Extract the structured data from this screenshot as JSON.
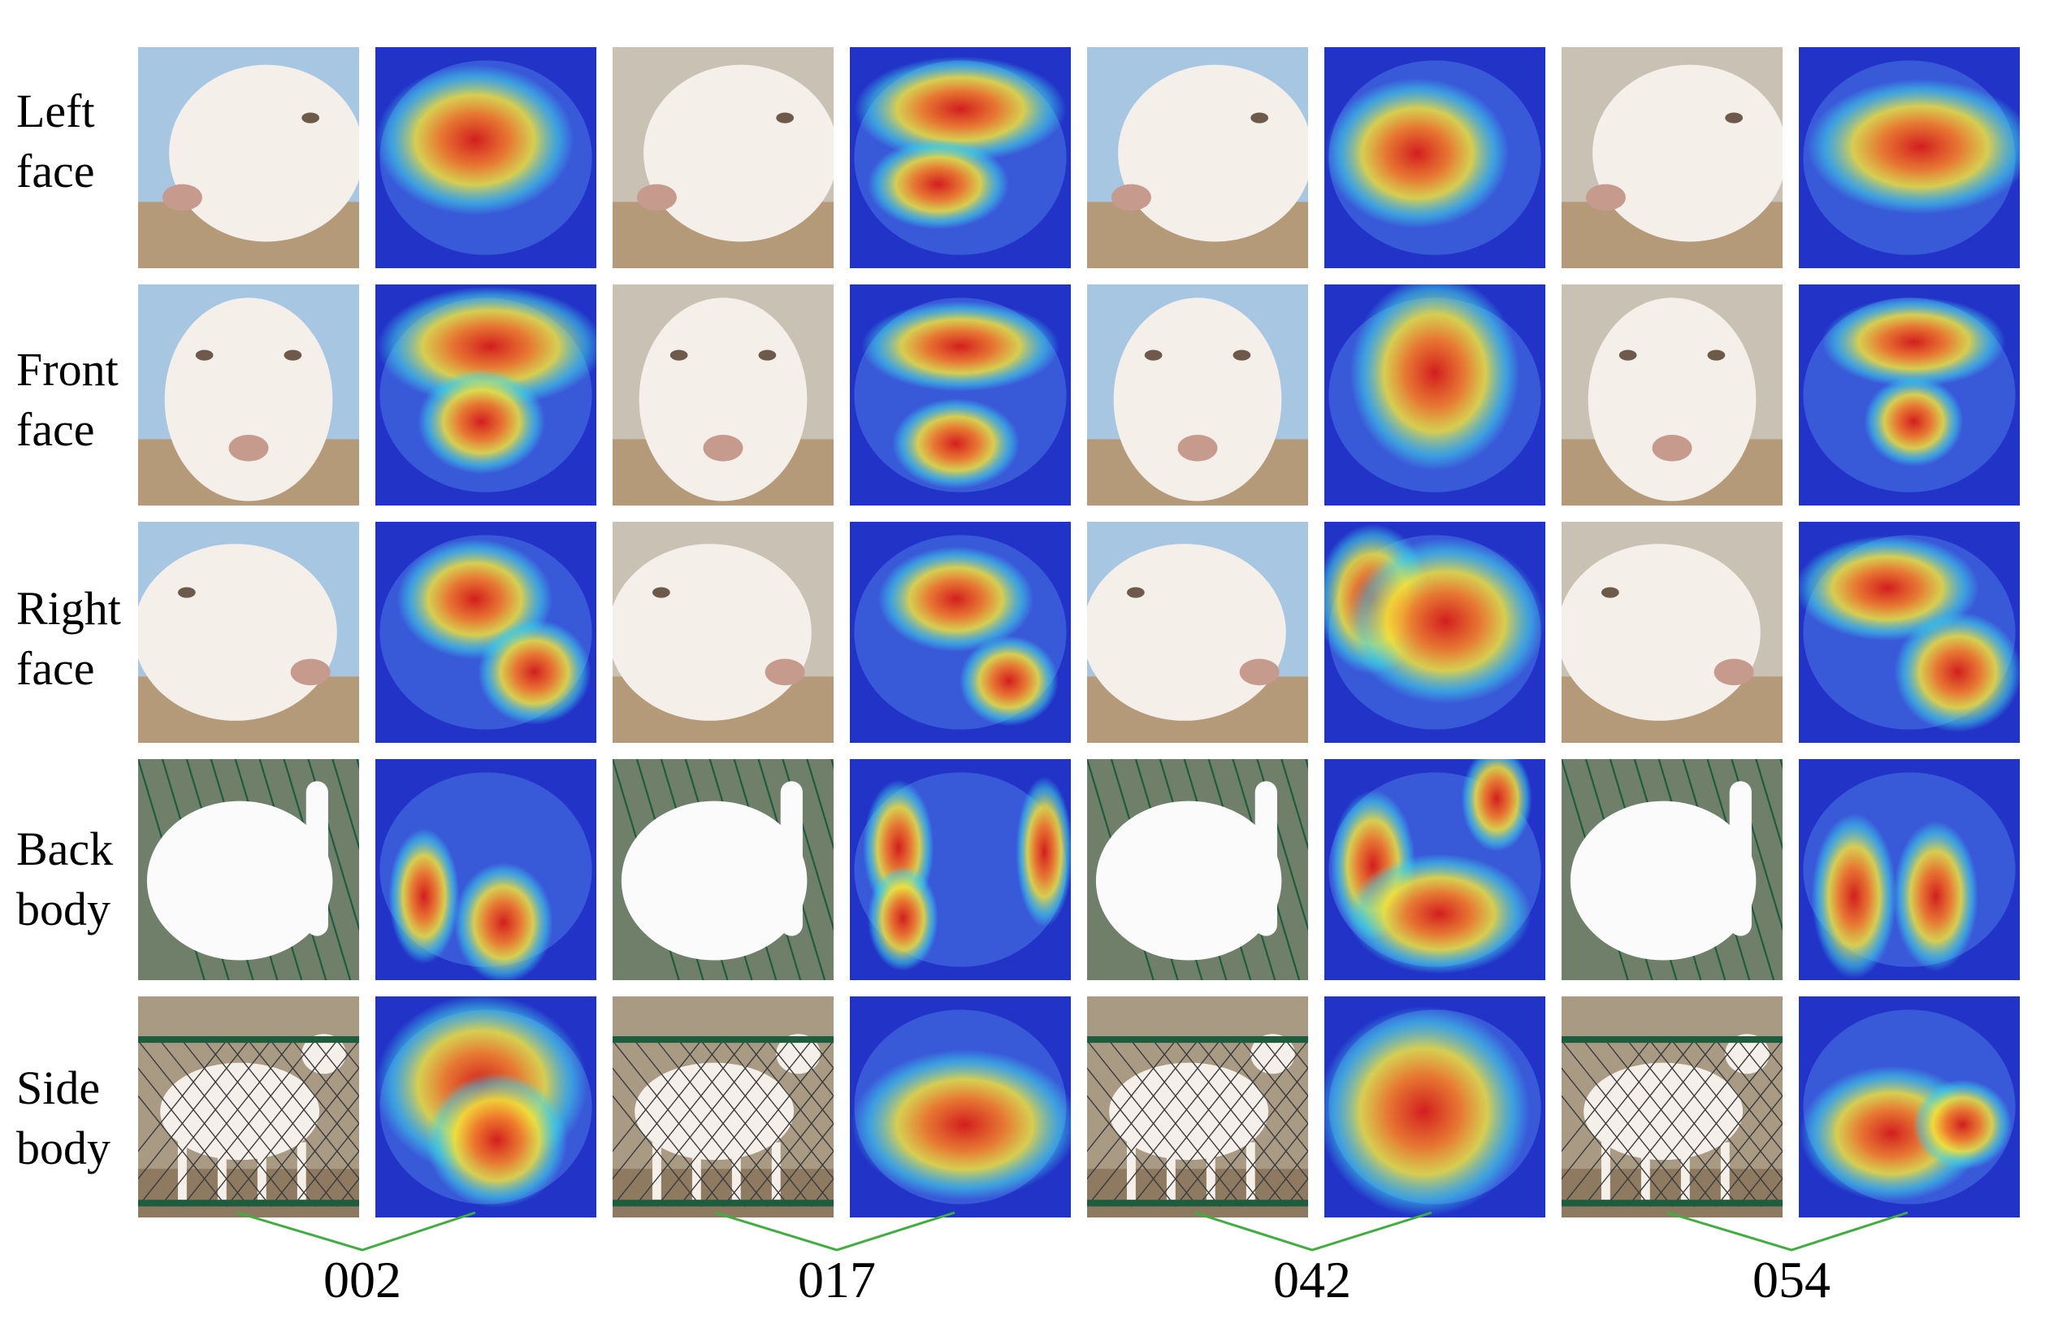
{
  "figure": {
    "row_labels": [
      {
        "line1": "Left",
        "line2": "face"
      },
      {
        "line1": "Front",
        "line2": "face"
      },
      {
        "line1": "Right",
        "line2": "face"
      },
      {
        "line1": "Back",
        "line2": "body"
      },
      {
        "line1": "Side",
        "line2": "body"
      }
    ],
    "goat_ids": [
      "002",
      "017",
      "042",
      "054"
    ],
    "colors": {
      "bracket_line": "#3fae3f",
      "heat_red": "#d21e1e",
      "heat_yellow": "#f2e23a",
      "heat_cyan": "#3fd6e6",
      "heat_blue": "#2233c8",
      "photo_white": "#f4efe8",
      "fence_green": "#1e5c3e",
      "sky_blue": "#a7c6e2"
    }
  }
}
